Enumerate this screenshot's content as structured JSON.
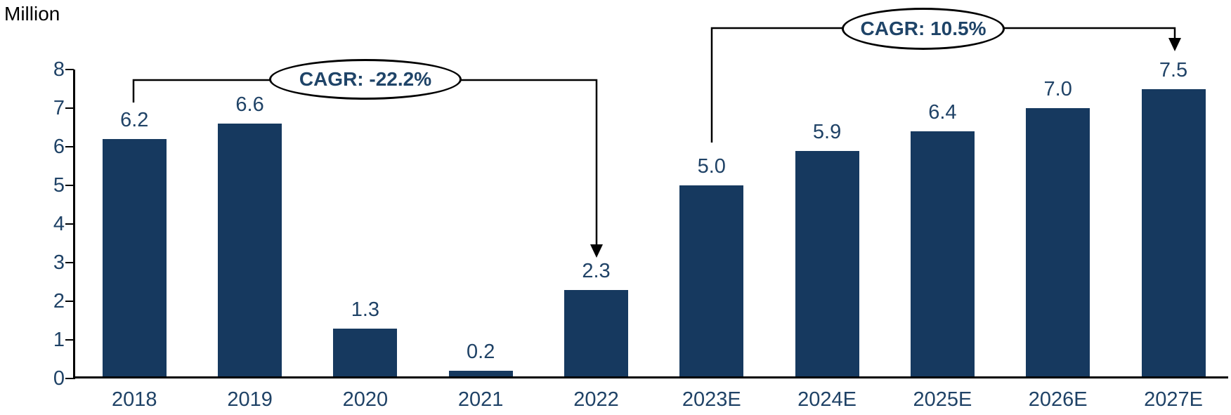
{
  "chart_data": {
    "type": "bar",
    "unit_label": "Million",
    "categories": [
      "2018",
      "2019",
      "2020",
      "2021",
      "2022",
      "2023E",
      "2024E",
      "2025E",
      "2026E",
      "2027E"
    ],
    "values": [
      6.2,
      6.6,
      1.3,
      0.2,
      2.3,
      5.0,
      5.9,
      6.4,
      7.0,
      7.5
    ],
    "title": "",
    "xlabel": "",
    "ylabel": "Million",
    "ylim": [
      0,
      8
    ],
    "ytick_step": 1,
    "yticks": [
      0,
      1,
      2,
      3,
      4,
      5,
      6,
      7,
      8
    ],
    "grid": false,
    "legend_position": "none",
    "bar_color": "#16395f",
    "label_color": "#1f4266",
    "axis_color": "#000000"
  },
  "annotations": [
    {
      "label": "CAGR: -22.2%",
      "from": "2018",
      "to": "2022"
    },
    {
      "label": "CAGR: 10.5%",
      "from": "2023E",
      "to": "2027E"
    }
  ]
}
